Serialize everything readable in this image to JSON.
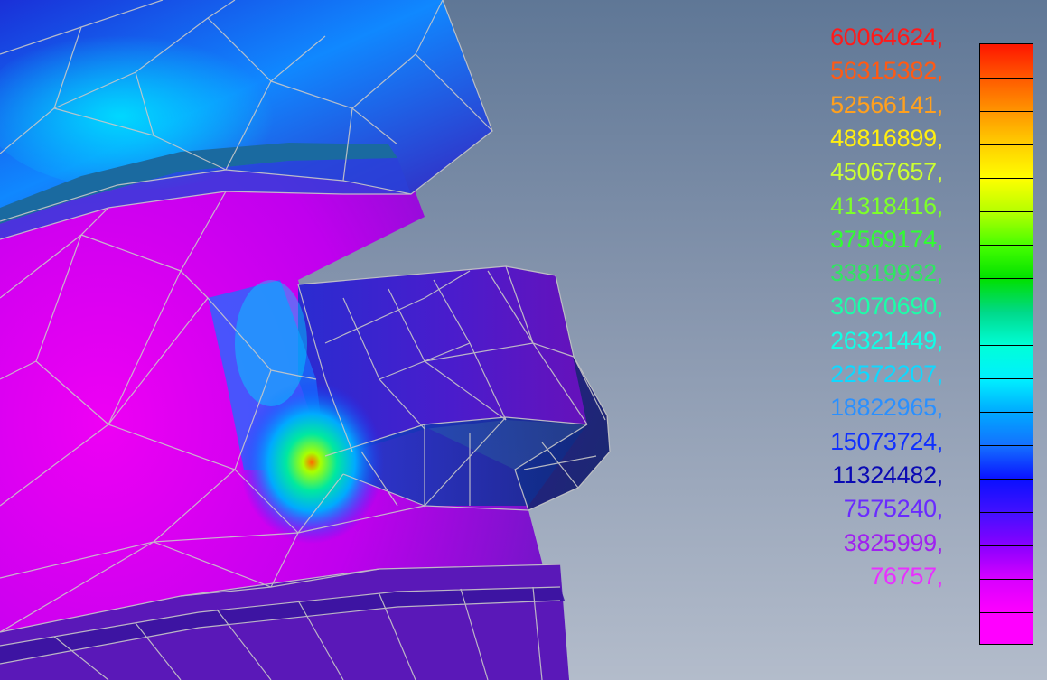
{
  "colors": {
    "background_top": "#5f7796",
    "background_bottom": "#b3bccb",
    "mesh_edges": "#c7c7c7",
    "body_magenta": "#e800f0",
    "body_purple": "#7b14c8",
    "body_blue": "#1a2bd0",
    "hotspot_cyan": "#00e0ff",
    "hotspot_green": "#4fe000",
    "hotspot_orange": "#ff8a00"
  },
  "legend": {
    "entries": [
      {
        "label": "60064624,",
        "color": "#ff1a1a"
      },
      {
        "label": "56315382,",
        "color": "#ff5a14"
      },
      {
        "label": "52566141,",
        "color": "#ffa01e"
      },
      {
        "label": "48816899,",
        "color": "#ffee10"
      },
      {
        "label": "45067657,",
        "color": "#ccff30"
      },
      {
        "label": "41318416,",
        "color": "#7dff2a"
      },
      {
        "label": "37569174,",
        "color": "#30ff30"
      },
      {
        "label": "33819932,",
        "color": "#2ee860"
      },
      {
        "label": "30070690,",
        "color": "#1bffa8"
      },
      {
        "label": "26321449,",
        "color": "#10ffe6"
      },
      {
        "label": "22572207,",
        "color": "#10d8ff"
      },
      {
        "label": "18822965,",
        "color": "#2a90ff"
      },
      {
        "label": "15073724,",
        "color": "#1030ff"
      },
      {
        "label": "11324482,",
        "color": "#0a0ab4"
      },
      {
        "label": "7575240,",
        "color": "#6a2bff"
      },
      {
        "label": "3825999,",
        "color": "#a020f0"
      },
      {
        "label": "76757,",
        "color": "#e830ff"
      }
    ],
    "bands": [
      "#ff1500",
      "#ff5a00",
      "#ff9600",
      "#ffd000",
      "#ffff00",
      "#b4ff00",
      "#46ff00",
      "#00e000",
      "#00d98a",
      "#00ffd8",
      "#00f0ff",
      "#00a8ff",
      "#1470ff",
      "#0a10ff",
      "#4410ff",
      "#8a00ff",
      "#d800ff",
      "#ff00ff"
    ]
  }
}
